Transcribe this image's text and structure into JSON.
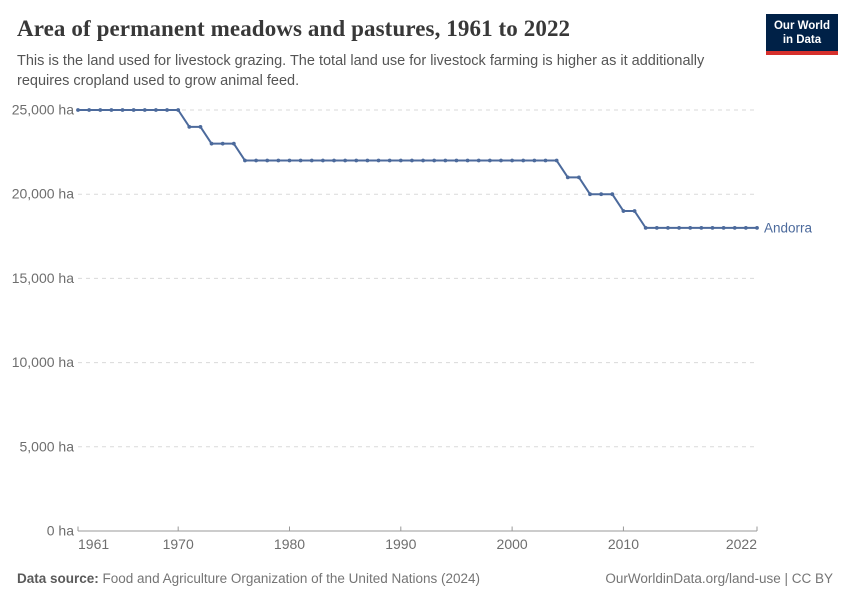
{
  "header": {
    "title": "Area of permanent meadows and pastures, 1961 to 2022",
    "subtitle": "This is the land used for livestock grazing. The total land use for livestock farming is higher as it additionally\nrequires cropland used to grow animal feed.",
    "logo_text": "Our World\nin Data"
  },
  "chart_data": {
    "type": "line",
    "title": "Area of permanent meadows and pastures, 1961 to 2022",
    "entity": "Andorra",
    "unit": "ha",
    "xlim": [
      1961,
      2022
    ],
    "ylim": [
      0,
      25000
    ],
    "grid": "horizontal-dashed",
    "legend_position": "end-of-line-label",
    "line_color": "#4c6a9c",
    "x": [
      1961,
      1962,
      1963,
      1964,
      1965,
      1966,
      1967,
      1968,
      1969,
      1970,
      1971,
      1972,
      1973,
      1974,
      1975,
      1976,
      1977,
      1978,
      1979,
      1980,
      1981,
      1982,
      1983,
      1984,
      1985,
      1986,
      1987,
      1988,
      1989,
      1990,
      1991,
      1992,
      1993,
      1994,
      1995,
      1996,
      1997,
      1998,
      1999,
      2000,
      2001,
      2002,
      2003,
      2004,
      2005,
      2006,
      2007,
      2008,
      2009,
      2010,
      2011,
      2012,
      2013,
      2014,
      2015,
      2016,
      2017,
      2018,
      2019,
      2020,
      2021,
      2022
    ],
    "values": [
      25000,
      25000,
      25000,
      25000,
      25000,
      25000,
      25000,
      25000,
      25000,
      25000,
      24000,
      24000,
      23000,
      23000,
      23000,
      22000,
      22000,
      22000,
      22000,
      22000,
      22000,
      22000,
      22000,
      22000,
      22000,
      22000,
      22000,
      22000,
      22000,
      22000,
      22000,
      22000,
      22000,
      22000,
      22000,
      22000,
      22000,
      22000,
      22000,
      22000,
      22000,
      22000,
      22000,
      22000,
      21000,
      21000,
      20000,
      20000,
      20000,
      19000,
      19000,
      18000,
      18000,
      18000,
      18000,
      18000,
      18000,
      18000,
      18000,
      18000,
      18000,
      18000
    ],
    "y_ticks": [
      {
        "value": 0,
        "label": "0 ha"
      },
      {
        "value": 5000,
        "label": "5,000 ha"
      },
      {
        "value": 10000,
        "label": "10,000 ha"
      },
      {
        "value": 15000,
        "label": "15,000 ha"
      },
      {
        "value": 20000,
        "label": "20,000 ha"
      },
      {
        "value": 25000,
        "label": "25,000 ha"
      }
    ],
    "x_ticks": [
      {
        "value": 1961,
        "label": "1961"
      },
      {
        "value": 1970,
        "label": "1970"
      },
      {
        "value": 1980,
        "label": "1980"
      },
      {
        "value": 1990,
        "label": "1990"
      },
      {
        "value": 2000,
        "label": "2000"
      },
      {
        "value": 2010,
        "label": "2010"
      },
      {
        "value": 2022,
        "label": "2022"
      }
    ]
  },
  "footer": {
    "source_label": "Data source:",
    "source_text": " Food and Agriculture Organization of the United Nations (2024)",
    "attribution": "OurWorldinData.org/land-use | CC BY"
  },
  "colors": {
    "line": "#4c6a9c",
    "entity_label": "#4c6a9c",
    "gridline": "#dadada",
    "axis": "#999999",
    "tick_text": "#6e6e6e",
    "title_text": "#383838",
    "subtitle_text": "#555555",
    "footer_text": "#757575",
    "logo_background": "#002147",
    "logo_red_bar": "#d6302c"
  }
}
